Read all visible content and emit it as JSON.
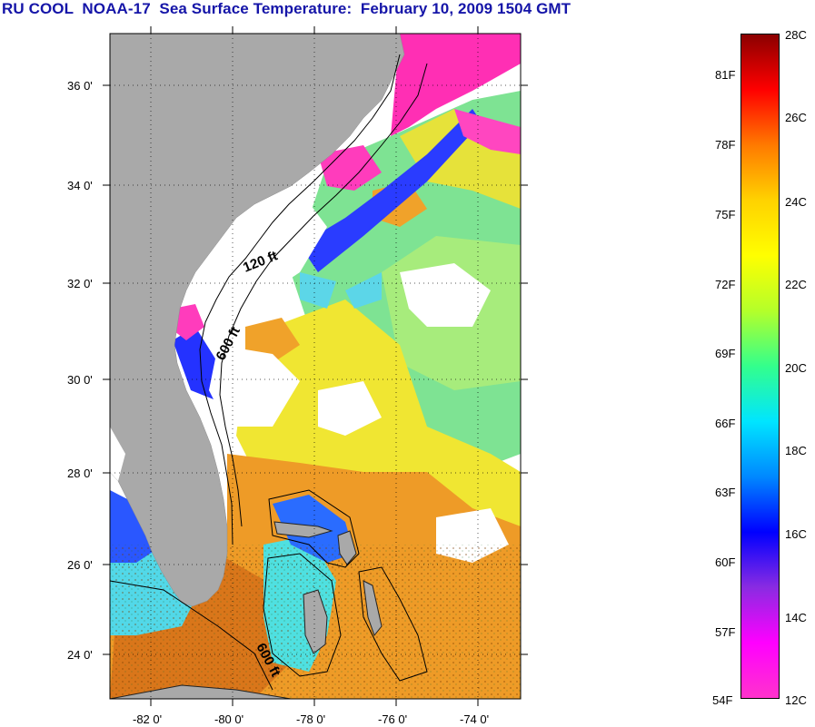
{
  "title": "RU COOL  NOAA-17  Sea Surface Temperature:  February 10, 2009 1504 GMT",
  "map": {
    "lat_labels": [
      "36 0'",
      "34 0'",
      "32 0'",
      "30 0'",
      "28 0'",
      "26 0'",
      "24 0'"
    ],
    "lon_labels": [
      "-82 0'",
      "-80 0'",
      "-78 0'",
      "-76 0'",
      "-74 0'"
    ],
    "contour_labels": [
      "120 ft",
      "600 ft",
      "600 ft"
    ],
    "colors": {
      "land": "#a9a9a9",
      "cloud": "#ffffff",
      "magenta": "#ff2fb4",
      "blue": "#2a3cff",
      "cyan": "#36e0e6",
      "green": "#6de0a0",
      "yellow": "#f2e21e",
      "orange": "#e9861a"
    }
  },
  "colorbar": {
    "fahrenheit": [
      "81F",
      "78F",
      "75F",
      "72F",
      "69F",
      "66F",
      "63F",
      "60F",
      "57F",
      "54F"
    ],
    "celsius": [
      "28C",
      "26C",
      "24C",
      "22C",
      "20C",
      "18C",
      "16C",
      "14C",
      "12C"
    ],
    "gradient_colors": [
      "#8b0000",
      "#ff0000",
      "#ff7a00",
      "#ffd200",
      "#ffff00",
      "#b4ff2a",
      "#33ff8c",
      "#00e5ff",
      "#0088ff",
      "#0000ff",
      "#8a2be2",
      "#ff00ff",
      "#ff33cc"
    ]
  }
}
